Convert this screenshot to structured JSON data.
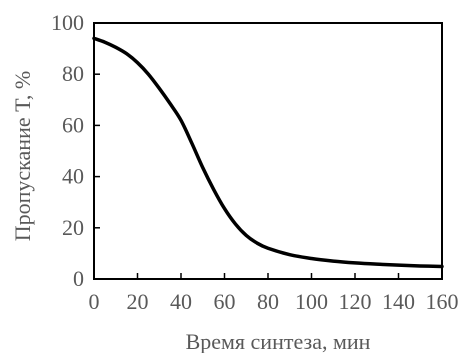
{
  "chart_data": {
    "type": "line",
    "title": "",
    "xlabel": "Время синтеза, мин",
    "ylabel": "Пропускание T, %",
    "xlim": [
      0,
      160
    ],
    "ylim": [
      0,
      100
    ],
    "xticks": [
      0,
      20,
      40,
      60,
      80,
      100,
      120,
      140,
      160
    ],
    "yticks": [
      0,
      20,
      40,
      60,
      80,
      100
    ],
    "grid": false,
    "legend": "none",
    "colors": {
      "line": "#000000",
      "axis": "#000000",
      "text": "#595959"
    },
    "series": [
      {
        "x": [
          0,
          5,
          10,
          15,
          20,
          25,
          30,
          35,
          40,
          45,
          50,
          55,
          60,
          65,
          70,
          75,
          80,
          90,
          100,
          110,
          120,
          130,
          140,
          150,
          160
        ],
        "y": [
          94,
          92.5,
          90.5,
          88,
          84.5,
          80,
          74.5,
          68.5,
          62,
          53,
          43.5,
          35,
          27.5,
          21.5,
          17,
          14,
          12,
          9.5,
          8,
          7,
          6.3,
          5.8,
          5.4,
          5.1,
          4.9
        ]
      }
    ]
  }
}
